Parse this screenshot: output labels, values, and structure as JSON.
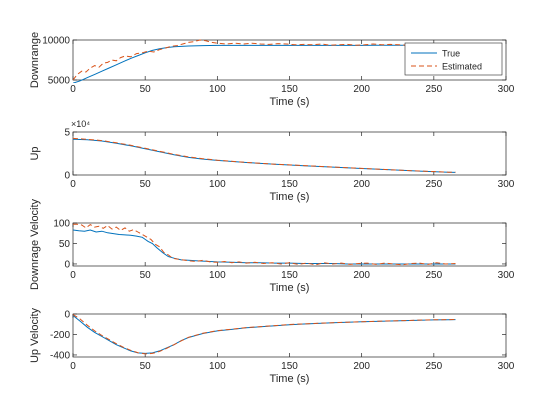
{
  "colors": {
    "true_series": "#0072BD",
    "estimated_series": "#D95319",
    "axes": "#262626",
    "background": "#ffffff"
  },
  "chart_data": [
    {
      "type": "line",
      "ylabel": "Downrange",
      "xlabel": "Time (s)",
      "xlim": [
        0,
        300
      ],
      "ylim": [
        5000,
        10000
      ],
      "xticks": [
        "0",
        "50",
        "100",
        "150",
        "200",
        "250",
        "300"
      ],
      "yticks": [
        "5000",
        "10000"
      ],
      "ytick_values": [
        5000,
        10000
      ],
      "exponent_label": "",
      "legend": {
        "placement": "top-right",
        "entries": [
          "True",
          "Estimated"
        ]
      },
      "series": [
        {
          "name": "True",
          "style": "solid",
          "x": [
            0,
            5,
            10,
            15,
            20,
            25,
            30,
            35,
            40,
            45,
            50,
            55,
            60,
            65,
            70,
            80,
            90,
            100,
            110,
            120,
            130,
            140,
            150,
            160,
            170,
            180,
            190,
            200,
            210,
            220,
            230,
            240,
            250,
            260,
            265
          ],
          "y": [
            4600,
            4900,
            5300,
            5700,
            6100,
            6500,
            6900,
            7300,
            7700,
            8050,
            8400,
            8700,
            8900,
            9050,
            9150,
            9250,
            9300,
            9320,
            9330,
            9330,
            9330,
            9330,
            9330,
            9330,
            9330,
            9330,
            9330,
            9330,
            9340,
            9340,
            9340,
            9340,
            9350,
            9350,
            9350
          ]
        },
        {
          "name": "Estimated",
          "style": "dashed",
          "x": [
            0,
            3,
            6,
            9,
            12,
            15,
            18,
            21,
            24,
            27,
            30,
            33,
            36,
            40,
            44,
            48,
            52,
            56,
            60,
            64,
            68,
            72,
            76,
            80,
            84,
            88,
            92,
            96,
            100,
            106,
            112,
            118,
            124,
            130,
            136,
            142,
            148,
            154,
            160,
            166,
            172,
            178,
            184,
            190,
            196,
            202,
            208,
            214,
            220,
            226,
            232,
            238,
            244,
            250,
            256,
            262,
            265
          ],
          "y": [
            5000,
            5700,
            6100,
            6000,
            6500,
            6800,
            6600,
            7100,
            7200,
            7500,
            7400,
            7800,
            8000,
            7900,
            8300,
            8400,
            8600,
            8500,
            8800,
            9000,
            9200,
            9300,
            9500,
            9700,
            9800,
            10000,
            9900,
            9700,
            9600,
            9500,
            9600,
            9500,
            9600,
            9500,
            9450,
            9550,
            9500,
            9400,
            9450,
            9400,
            9500,
            9350,
            9400,
            9450,
            9350,
            9400,
            9500,
            9400,
            9450,
            9400,
            9350,
            9400,
            9450,
            9400,
            9350,
            9450,
            9400
          ]
        }
      ]
    },
    {
      "type": "line",
      "ylabel": "Up",
      "xlabel": "Time (s)",
      "xlim": [
        0,
        300
      ],
      "ylim": [
        0,
        50000
      ],
      "xticks": [
        "0",
        "50",
        "100",
        "150",
        "200",
        "250",
        "300"
      ],
      "yticks": [
        "0",
        "5"
      ],
      "ytick_values": [
        0,
        50000
      ],
      "exponent_label": "×10⁴",
      "series": [
        {
          "name": "True",
          "style": "solid",
          "x": [
            0,
            10,
            20,
            30,
            40,
            50,
            60,
            70,
            80,
            90,
            100,
            120,
            140,
            160,
            180,
            200,
            220,
            240,
            260,
            265
          ],
          "y": [
            41500,
            41000,
            39500,
            37000,
            34000,
            30500,
            27000,
            23500,
            20500,
            18500,
            17000,
            14500,
            12500,
            10800,
            9200,
            7600,
            6000,
            4500,
            3200,
            3000
          ]
        },
        {
          "name": "Estimated",
          "style": "dashed",
          "x": [
            0,
            10,
            20,
            30,
            40,
            50,
            60,
            70,
            80,
            90,
            100,
            120,
            140,
            160,
            180,
            200,
            220,
            240,
            260,
            265
          ],
          "y": [
            42500,
            41500,
            40000,
            37500,
            34500,
            31000,
            27500,
            24000,
            21000,
            19000,
            17200,
            14700,
            12600,
            10900,
            9300,
            7700,
            6100,
            4600,
            3300,
            3100
          ]
        }
      ]
    },
    {
      "type": "line",
      "ylabel": "Downrage Velocity",
      "xlabel": "Time (s)",
      "xlim": [
        0,
        300
      ],
      "ylim": [
        -5,
        100
      ],
      "xticks": [
        "0",
        "50",
        "100",
        "150",
        "200",
        "250",
        "300"
      ],
      "yticks": [
        "0",
        "50",
        "100"
      ],
      "ytick_values": [
        0,
        50,
        100
      ],
      "exponent_label": "",
      "series": [
        {
          "name": "True",
          "style": "solid",
          "x": [
            0,
            4,
            8,
            12,
            16,
            20,
            24,
            28,
            32,
            36,
            40,
            44,
            48,
            50,
            52,
            55,
            58,
            62,
            66,
            70,
            75,
            80,
            85,
            90,
            95,
            100,
            110,
            120,
            130,
            140,
            150,
            160,
            170,
            180,
            190,
            200,
            210,
            220,
            230,
            240,
            250,
            260,
            265
          ],
          "y": [
            83,
            81,
            80,
            83,
            78,
            80,
            76,
            74,
            72,
            71,
            70,
            68,
            65,
            60,
            55,
            50,
            40,
            28,
            18,
            14,
            10,
            9,
            8,
            7,
            6,
            5,
            4,
            3,
            3,
            2,
            2,
            1,
            1,
            1,
            0,
            0,
            0,
            0,
            0,
            0,
            0,
            0,
            0
          ]
        },
        {
          "name": "Estimated",
          "style": "dashed",
          "x": [
            0,
            3,
            6,
            9,
            12,
            15,
            18,
            21,
            24,
            27,
            30,
            33,
            36,
            39,
            42,
            45,
            48,
            51,
            54,
            57,
            60,
            63,
            66,
            69,
            72,
            76,
            80,
            85,
            90,
            95,
            100,
            105,
            110,
            115,
            120,
            126,
            132,
            138,
            144,
            150,
            156,
            162,
            168,
            174,
            180,
            186,
            192,
            198,
            204,
            210,
            216,
            222,
            228,
            234,
            240,
            246,
            252,
            258,
            265
          ],
          "y": [
            97,
            97,
            95,
            88,
            96,
            90,
            92,
            87,
            94,
            85,
            90,
            82,
            88,
            80,
            84,
            78,
            72,
            66,
            60,
            48,
            42,
            28,
            22,
            14,
            12,
            10,
            8,
            6,
            9,
            5,
            4,
            6,
            3,
            5,
            2,
            4,
            1,
            3,
            0,
            3,
            -1,
            2,
            -2,
            3,
            0,
            2,
            -1,
            1,
            2,
            -1,
            2,
            0,
            -2,
            1,
            2,
            -1,
            3,
            0,
            1
          ]
        }
      ]
    },
    {
      "type": "line",
      "ylabel": "Up Velocity",
      "xlabel": "Time (s)",
      "xlim": [
        0,
        300
      ],
      "ylim": [
        -420,
        0
      ],
      "xticks": [
        "0",
        "50",
        "100",
        "150",
        "200",
        "250",
        "300"
      ],
      "yticks": [
        "-400",
        "-200",
        "0"
      ],
      "ytick_values": [
        -400,
        -200,
        0
      ],
      "exponent_label": "",
      "series": [
        {
          "name": "True",
          "style": "solid",
          "x": [
            0,
            5,
            10,
            15,
            20,
            25,
            30,
            35,
            40,
            45,
            50,
            55,
            60,
            65,
            70,
            75,
            80,
            90,
            100,
            110,
            120,
            130,
            140,
            150,
            160,
            170,
            180,
            190,
            200,
            210,
            220,
            230,
            240,
            250,
            260,
            265
          ],
          "y": [
            -15,
            -70,
            -130,
            -180,
            -220,
            -260,
            -300,
            -330,
            -360,
            -380,
            -385,
            -380,
            -360,
            -330,
            -300,
            -260,
            -230,
            -190,
            -165,
            -150,
            -135,
            -125,
            -115,
            -105,
            -98,
            -92,
            -86,
            -80,
            -76,
            -72,
            -68,
            -64,
            -61,
            -58,
            -56,
            -55
          ]
        },
        {
          "name": "Estimated",
          "style": "dashed",
          "x": [
            0,
            5,
            10,
            15,
            20,
            25,
            30,
            35,
            40,
            45,
            50,
            55,
            60,
            65,
            70,
            75,
            80,
            90,
            100,
            110,
            120,
            130,
            140,
            150,
            160,
            170,
            180,
            190,
            200,
            210,
            220,
            230,
            240,
            250,
            260,
            265
          ],
          "y": [
            -5,
            -50,
            -110,
            -165,
            -210,
            -250,
            -290,
            -325,
            -355,
            -378,
            -390,
            -385,
            -365,
            -335,
            -300,
            -262,
            -228,
            -188,
            -162,
            -148,
            -133,
            -123,
            -113,
            -103,
            -97,
            -91,
            -85,
            -80,
            -75,
            -71,
            -67,
            -64,
            -60,
            -57,
            -55,
            -54
          ]
        }
      ]
    }
  ]
}
